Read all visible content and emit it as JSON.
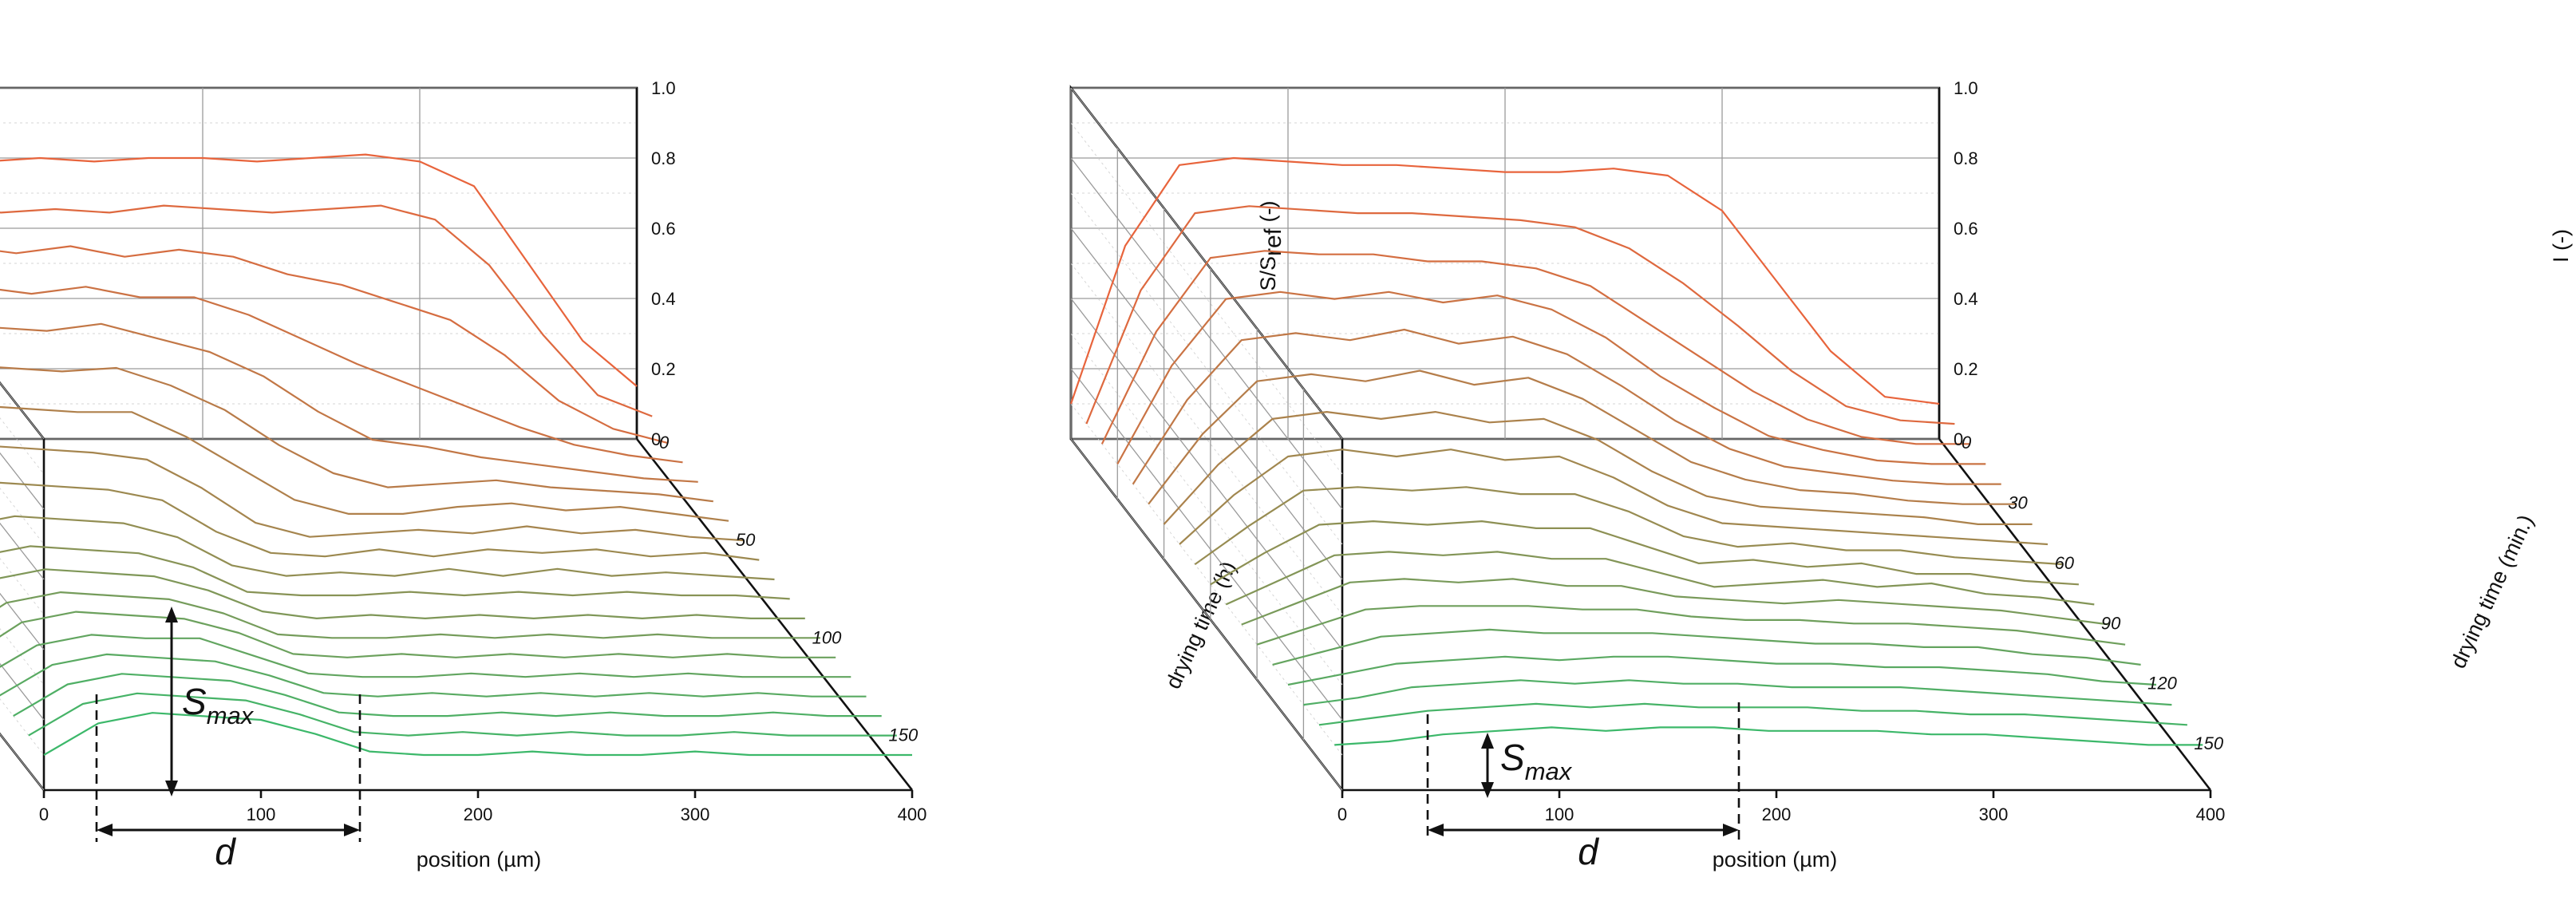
{
  "chart_data": [
    {
      "type": "3d-waterfall-line",
      "panel": "left",
      "x": [
        0,
        25,
        50,
        75,
        100,
        125,
        150,
        175,
        200,
        225,
        250,
        275,
        300,
        325,
        350,
        375,
        400
      ],
      "xlabel": "position (µm)",
      "x_ticks": [
        "0",
        "100",
        "200",
        "300",
        "400"
      ],
      "xlim": [
        0,
        400
      ],
      "zlabel": "S/S",
      "zlabel_sub": "ref",
      "zlabel_suffix": " (-)",
      "z_ticks": [
        "0",
        "0.2",
        "0.4",
        "0.6",
        "0.8",
        "1.0"
      ],
      "zlim": [
        0,
        1.0
      ],
      "ylabel": "drying time (h)",
      "y_ticks": [
        "0",
        "50",
        "100",
        "150"
      ],
      "ylim": [
        0,
        180
      ],
      "color_early": "#e8643c",
      "color_late": "#3cb86a",
      "annotations": {
        "height": "S",
        "height_sub": "max",
        "width": "d"
      },
      "series": [
        {
          "time": 0,
          "values": [
            0.1,
            0.72,
            0.78,
            0.8,
            0.79,
            0.8,
            0.79,
            0.8,
            0.8,
            0.79,
            0.8,
            0.81,
            0.79,
            0.72,
            0.5,
            0.28,
            0.15
          ]
        },
        {
          "time": 10,
          "values": [
            0.1,
            0.68,
            0.72,
            0.72,
            0.7,
            0.71,
            0.7,
            0.72,
            0.71,
            0.7,
            0.71,
            0.72,
            0.68,
            0.55,
            0.35,
            0.18,
            0.12
          ]
        },
        {
          "time": 20,
          "values": [
            0.1,
            0.63,
            0.66,
            0.66,
            0.64,
            0.66,
            0.63,
            0.65,
            0.63,
            0.58,
            0.55,
            0.5,
            0.45,
            0.35,
            0.22,
            0.14,
            0.1
          ]
        },
        {
          "time": 30,
          "values": [
            0.1,
            0.58,
            0.6,
            0.6,
            0.58,
            0.6,
            0.57,
            0.57,
            0.52,
            0.45,
            0.38,
            0.32,
            0.26,
            0.2,
            0.15,
            0.12,
            0.1
          ]
        },
        {
          "time": 40,
          "values": [
            0.1,
            0.52,
            0.55,
            0.54,
            0.53,
            0.55,
            0.51,
            0.47,
            0.4,
            0.3,
            0.22,
            0.2,
            0.17,
            0.15,
            0.13,
            0.11,
            0.1
          ]
        },
        {
          "time": 50,
          "values": [
            0.1,
            0.46,
            0.49,
            0.48,
            0.47,
            0.48,
            0.43,
            0.36,
            0.26,
            0.18,
            0.14,
            0.15,
            0.16,
            0.14,
            0.13,
            0.12,
            0.1
          ]
        },
        {
          "time": 60,
          "values": [
            0.1,
            0.4,
            0.43,
            0.42,
            0.41,
            0.41,
            0.34,
            0.25,
            0.16,
            0.12,
            0.12,
            0.14,
            0.15,
            0.13,
            0.14,
            0.12,
            0.1
          ]
        },
        {
          "time": 70,
          "values": [
            0.1,
            0.34,
            0.37,
            0.36,
            0.35,
            0.33,
            0.25,
            0.15,
            0.11,
            0.12,
            0.13,
            0.12,
            0.14,
            0.12,
            0.13,
            0.11,
            0.1
          ]
        },
        {
          "time": 80,
          "values": [
            0.1,
            0.29,
            0.32,
            0.31,
            0.3,
            0.27,
            0.18,
            0.12,
            0.11,
            0.13,
            0.11,
            0.13,
            0.12,
            0.13,
            0.11,
            0.12,
            0.1
          ]
        },
        {
          "time": 90,
          "values": [
            0.1,
            0.25,
            0.28,
            0.27,
            0.26,
            0.22,
            0.14,
            0.11,
            0.12,
            0.11,
            0.13,
            0.11,
            0.13,
            0.11,
            0.12,
            0.11,
            0.1
          ]
        },
        {
          "time": 100,
          "values": [
            0.1,
            0.22,
            0.25,
            0.24,
            0.23,
            0.19,
            0.12,
            0.11,
            0.11,
            0.12,
            0.11,
            0.12,
            0.11,
            0.12,
            0.11,
            0.11,
            0.1
          ]
        },
        {
          "time": 110,
          "values": [
            0.1,
            0.21,
            0.24,
            0.23,
            0.22,
            0.18,
            0.12,
            0.1,
            0.11,
            0.1,
            0.11,
            0.1,
            0.11,
            0.1,
            0.11,
            0.1,
            0.1
          ]
        },
        {
          "time": 120,
          "values": [
            0.1,
            0.2,
            0.23,
            0.22,
            0.21,
            0.17,
            0.11,
            0.1,
            0.1,
            0.11,
            0.1,
            0.11,
            0.1,
            0.11,
            0.1,
            0.1,
            0.1
          ]
        },
        {
          "time": 130,
          "values": [
            0.1,
            0.2,
            0.23,
            0.22,
            0.21,
            0.17,
            0.11,
            0.1,
            0.11,
            0.1,
            0.11,
            0.1,
            0.11,
            0.1,
            0.11,
            0.1,
            0.1
          ]
        },
        {
          "time": 140,
          "values": [
            0.1,
            0.19,
            0.22,
            0.21,
            0.21,
            0.16,
            0.11,
            0.1,
            0.1,
            0.11,
            0.1,
            0.11,
            0.1,
            0.11,
            0.1,
            0.1,
            0.1
          ]
        },
        {
          "time": 150,
          "values": [
            0.1,
            0.19,
            0.22,
            0.21,
            0.2,
            0.16,
            0.11,
            0.1,
            0.11,
            0.1,
            0.11,
            0.1,
            0.11,
            0.1,
            0.11,
            0.1,
            0.1
          ]
        },
        {
          "time": 160,
          "values": [
            0.1,
            0.19,
            0.22,
            0.21,
            0.2,
            0.16,
            0.11,
            0.1,
            0.1,
            0.11,
            0.1,
            0.11,
            0.1,
            0.1,
            0.11,
            0.1,
            0.1
          ]
        },
        {
          "time": 170,
          "values": [
            0.1,
            0.19,
            0.22,
            0.21,
            0.2,
            0.16,
            0.11,
            0.1,
            0.11,
            0.1,
            0.11,
            0.1,
            0.1,
            0.11,
            0.1,
            0.1,
            0.1
          ]
        },
        {
          "time": 180,
          "values": [
            0.1,
            0.19,
            0.22,
            0.21,
            0.2,
            0.16,
            0.11,
            0.1,
            0.1,
            0.11,
            0.1,
            0.1,
            0.11,
            0.1,
            0.1,
            0.1,
            0.1
          ]
        }
      ]
    },
    {
      "type": "3d-waterfall-line",
      "panel": "right",
      "x": [
        0,
        25,
        50,
        75,
        100,
        125,
        150,
        175,
        200,
        225,
        250,
        275,
        300,
        325,
        350,
        375,
        400
      ],
      "xlabel": "position (µm)",
      "x_ticks": [
        "0",
        "100",
        "200",
        "300",
        "400"
      ],
      "xlim": [
        0,
        400
      ],
      "zlabel": "I (-)",
      "z_ticks": [
        "0",
        "0.2",
        "0.4",
        "0.6",
        "0.8",
        "1.0"
      ],
      "zlim": [
        0,
        1.0
      ],
      "ylabel": "drying time (min.)",
      "y_ticks": [
        "0",
        "30",
        "60",
        "90",
        "120",
        "150"
      ],
      "ylim": [
        0,
        175
      ],
      "color_early": "#e8643c",
      "color_late": "#3cb86a",
      "annotations": {
        "height": "S",
        "height_sub": "max",
        "width": "d"
      },
      "series": [
        {
          "time": 0,
          "values": [
            0.1,
            0.55,
            0.78,
            0.8,
            0.79,
            0.78,
            0.78,
            0.77,
            0.76,
            0.76,
            0.77,
            0.75,
            0.65,
            0.45,
            0.25,
            0.12,
            0.1
          ]
        },
        {
          "time": 10,
          "values": [
            0.1,
            0.48,
            0.7,
            0.72,
            0.71,
            0.7,
            0.7,
            0.69,
            0.68,
            0.66,
            0.6,
            0.5,
            0.38,
            0.25,
            0.15,
            0.11,
            0.1
          ]
        },
        {
          "time": 20,
          "values": [
            0.1,
            0.42,
            0.63,
            0.65,
            0.64,
            0.64,
            0.62,
            0.62,
            0.6,
            0.55,
            0.45,
            0.35,
            0.25,
            0.17,
            0.12,
            0.1,
            0.1
          ]
        },
        {
          "time": 30,
          "values": [
            0.1,
            0.38,
            0.57,
            0.59,
            0.57,
            0.59,
            0.56,
            0.58,
            0.54,
            0.46,
            0.35,
            0.26,
            0.18,
            0.14,
            0.11,
            0.1,
            0.1
          ]
        },
        {
          "time": 40,
          "values": [
            0.1,
            0.34,
            0.51,
            0.53,
            0.51,
            0.54,
            0.5,
            0.52,
            0.47,
            0.38,
            0.28,
            0.2,
            0.15,
            0.13,
            0.11,
            0.1,
            0.1
          ]
        },
        {
          "time": 50,
          "values": [
            0.1,
            0.3,
            0.45,
            0.47,
            0.45,
            0.48,
            0.44,
            0.46,
            0.4,
            0.31,
            0.22,
            0.17,
            0.14,
            0.13,
            0.11,
            0.1,
            0.1
          ]
        },
        {
          "time": 60,
          "values": [
            0.1,
            0.27,
            0.4,
            0.42,
            0.4,
            0.42,
            0.39,
            0.4,
            0.34,
            0.25,
            0.18,
            0.15,
            0.14,
            0.13,
            0.12,
            0.1,
            0.1
          ]
        },
        {
          "time": 70,
          "values": [
            0.1,
            0.24,
            0.35,
            0.37,
            0.35,
            0.37,
            0.34,
            0.35,
            0.29,
            0.21,
            0.16,
            0.15,
            0.14,
            0.13,
            0.12,
            0.11,
            0.1
          ]
        },
        {
          "time": 80,
          "values": [
            0.1,
            0.21,
            0.31,
            0.32,
            0.31,
            0.32,
            0.3,
            0.3,
            0.25,
            0.18,
            0.15,
            0.16,
            0.14,
            0.14,
            0.12,
            0.11,
            0.1
          ]
        },
        {
          "time": 90,
          "values": [
            0.1,
            0.19,
            0.27,
            0.28,
            0.27,
            0.28,
            0.26,
            0.26,
            0.21,
            0.16,
            0.17,
            0.15,
            0.16,
            0.13,
            0.13,
            0.11,
            0.1
          ]
        },
        {
          "time": 100,
          "values": [
            0.1,
            0.17,
            0.24,
            0.25,
            0.24,
            0.25,
            0.23,
            0.23,
            0.19,
            0.15,
            0.16,
            0.17,
            0.15,
            0.16,
            0.13,
            0.12,
            0.1
          ]
        },
        {
          "time": 110,
          "values": [
            0.1,
            0.16,
            0.22,
            0.23,
            0.22,
            0.23,
            0.21,
            0.21,
            0.18,
            0.17,
            0.16,
            0.17,
            0.16,
            0.15,
            0.14,
            0.12,
            0.1
          ]
        },
        {
          "time": 120,
          "values": [
            0.1,
            0.15,
            0.2,
            0.21,
            0.21,
            0.21,
            0.2,
            0.2,
            0.18,
            0.17,
            0.17,
            0.16,
            0.16,
            0.15,
            0.14,
            0.12,
            0.1
          ]
        },
        {
          "time": 130,
          "values": [
            0.1,
            0.14,
            0.18,
            0.19,
            0.2,
            0.19,
            0.19,
            0.19,
            0.18,
            0.17,
            0.16,
            0.16,
            0.15,
            0.15,
            0.13,
            0.12,
            0.1
          ]
        },
        {
          "time": 140,
          "values": [
            0.1,
            0.13,
            0.16,
            0.17,
            0.18,
            0.17,
            0.18,
            0.18,
            0.17,
            0.16,
            0.16,
            0.15,
            0.15,
            0.14,
            0.13,
            0.11,
            0.1
          ]
        },
        {
          "time": 150,
          "values": [
            0.1,
            0.12,
            0.15,
            0.16,
            0.17,
            0.16,
            0.17,
            0.16,
            0.16,
            0.15,
            0.15,
            0.15,
            0.14,
            0.13,
            0.12,
            0.11,
            0.1
          ]
        },
        {
          "time": 160,
          "values": [
            0.1,
            0.12,
            0.14,
            0.15,
            0.16,
            0.15,
            0.16,
            0.15,
            0.15,
            0.15,
            0.14,
            0.14,
            0.13,
            0.13,
            0.12,
            0.11,
            0.1
          ]
        },
        {
          "time": 170,
          "values": [
            0.1,
            0.11,
            0.13,
            0.14,
            0.15,
            0.14,
            0.15,
            0.15,
            0.14,
            0.14,
            0.14,
            0.13,
            0.13,
            0.12,
            0.11,
            0.1,
            0.1
          ]
        }
      ]
    }
  ]
}
